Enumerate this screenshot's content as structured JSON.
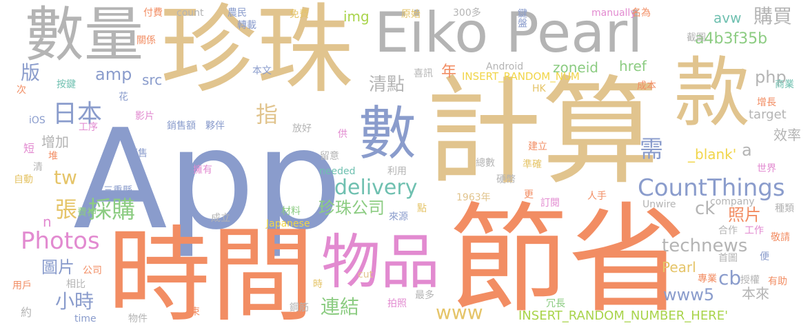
{
  "palette": {
    "peach": "#f4a88a",
    "orange": "#f28d63",
    "sand": "#e1c48e",
    "gold": "#e5c468",
    "lime": "#a9d44b",
    "green": "#8ccc82",
    "teal": "#6fc0b0",
    "blue": "#8a9ccc",
    "pink": "#e28ad0",
    "gray": "#b4b4b4",
    "yellow": "#f1d548"
  },
  "words": [
    {
      "text": "App",
      "color": "blue"
    },
    {
      "text": "珍珠",
      "color": "sand"
    },
    {
      "text": "計算",
      "color": "sand"
    },
    {
      "text": "節省",
      "color": "orange"
    },
    {
      "text": "時間",
      "color": "orange"
    },
    {
      "text": "Eiko Pearl",
      "color": "gray"
    },
    {
      "text": "數量",
      "color": "gray"
    },
    {
      "text": "款",
      "color": "sand"
    },
    {
      "text": "物品",
      "color": "pink"
    },
    {
      "text": "數",
      "color": "blue"
    },
    {
      "text": "CountThings",
      "color": "blue"
    },
    {
      "text": "Photos",
      "color": "pink"
    },
    {
      "text": "technews",
      "color": "gray"
    },
    {
      "text": "delivery",
      "color": "teal"
    },
    {
      "text": "www5",
      "color": "blue"
    },
    {
      "text": "購買",
      "color": "gray"
    },
    {
      "text": "日本",
      "color": "blue"
    },
    {
      "text": "amp",
      "color": "blue"
    },
    {
      "text": "版",
      "color": "blue"
    },
    {
      "text": "採購",
      "color": "green"
    },
    {
      "text": "清點",
      "color": "gray"
    },
    {
      "text": "連結",
      "color": "green"
    },
    {
      "text": "小時",
      "color": "blue"
    },
    {
      "text": "指",
      "color": "sand"
    },
    {
      "text": "需",
      "color": "blue"
    },
    {
      "text": "www",
      "color": "gold"
    },
    {
      "text": "珍珠公司",
      "color": "green"
    },
    {
      "text": "a4b3f35b",
      "color": "green"
    },
    {
      "text": "php",
      "color": "gray"
    },
    {
      "text": "張",
      "color": "gold"
    },
    {
      "text": "tw",
      "color": "gold"
    },
    {
      "text": "圖片",
      "color": "blue"
    },
    {
      "text": "cb",
      "color": "blue"
    },
    {
      "text": "zoneid",
      "color": "green"
    },
    {
      "text": "href",
      "color": "green"
    },
    {
      "text": "INSERT_RANDOM_NUMBER_HERE'",
      "color": "lime"
    },
    {
      "text": "INSERT_RANDOM_NUM",
      "color": "yellow"
    },
    {
      "text": "增加",
      "color": "gray"
    },
    {
      "text": "效率",
      "color": "gray"
    },
    {
      "text": "ck",
      "color": "gray"
    },
    {
      "text": "a",
      "color": "gray"
    },
    {
      "text": "照片",
      "color": "orange"
    },
    {
      "text": "_blank'",
      "color": "yellow"
    },
    {
      "text": "Pearl",
      "color": "gold"
    },
    {
      "text": "本來",
      "color": "gray"
    },
    {
      "text": "年",
      "color": "orange"
    },
    {
      "text": "avw",
      "color": "teal"
    },
    {
      "text": "src",
      "color": "blue"
    },
    {
      "text": "img",
      "color": "lime"
    },
    {
      "text": "n",
      "color": "pink"
    },
    {
      "text": "target",
      "color": "gray"
    },
    {
      "text": "Android",
      "color": "gray"
    },
    {
      "text": "300多",
      "color": "gray"
    },
    {
      "text": "needed",
      "color": "teal"
    },
    {
      "text": "1963年",
      "color": "sand"
    },
    {
      "text": "company",
      "color": "gray"
    },
    {
      "text": "manually",
      "color": "pink"
    },
    {
      "text": "Japanese",
      "color": "yellow"
    },
    {
      "text": "Unwire",
      "color": "gray"
    },
    {
      "text": "cut",
      "color": "sand"
    },
    {
      "text": "time",
      "color": "blue"
    },
    {
      "text": "count",
      "color": "gray"
    },
    {
      "text": "iOS",
      "color": "blue"
    },
    {
      "text": "HK",
      "color": "gold"
    },
    {
      "text": "名為",
      "color": "orange"
    },
    {
      "text": "截圖",
      "color": "gray"
    },
    {
      "text": "商業",
      "color": "teal"
    },
    {
      "text": "增長",
      "color": "orange"
    },
    {
      "text": "世界",
      "color": "pink"
    },
    {
      "text": "種類",
      "color": "gray"
    },
    {
      "text": "敬請",
      "color": "orange"
    },
    {
      "text": "工作",
      "color": "pink"
    },
    {
      "text": "合作",
      "color": "gray"
    },
    {
      "text": "首圖",
      "color": "gray"
    },
    {
      "text": "便",
      "color": "blue"
    },
    {
      "text": "專業",
      "color": "orange"
    },
    {
      "text": "授權",
      "color": "gray"
    },
    {
      "text": "有助",
      "color": "orange"
    },
    {
      "text": "冗長",
      "color": "green"
    },
    {
      "text": "拍照",
      "color": "pink"
    },
    {
      "text": "最多",
      "color": "gray"
    },
    {
      "text": "鋼筋",
      "color": "gray"
    },
    {
      "text": "物件",
      "color": "gray"
    },
    {
      "text": "束",
      "color": "orange"
    },
    {
      "text": "約",
      "color": "gray"
    },
    {
      "text": "用戶",
      "color": "orange"
    },
    {
      "text": "相比",
      "color": "gray"
    },
    {
      "text": "公司",
      "color": "orange"
    },
    {
      "text": "成立",
      "color": "gray"
    },
    {
      "text": "材料",
      "color": "green"
    },
    {
      "text": "來源",
      "color": "blue"
    },
    {
      "text": "點",
      "color": "gold"
    },
    {
      "text": "更",
      "color": "orange"
    },
    {
      "text": "訂閱",
      "color": "pink"
    },
    {
      "text": "人手",
      "color": "orange"
    },
    {
      "text": "硬幣",
      "color": "gray"
    },
    {
      "text": "準確",
      "color": "gold"
    },
    {
      "text": "總數",
      "color": "gray"
    },
    {
      "text": "建立",
      "color": "orange"
    },
    {
      "text": "成本",
      "color": "orange"
    },
    {
      "text": "利用",
      "color": "gray"
    },
    {
      "text": "留意",
      "color": "gray"
    },
    {
      "text": "供",
      "color": "pink"
    },
    {
      "text": "放好",
      "color": "gray"
    },
    {
      "text": "喜訊",
      "color": "gray"
    },
    {
      "text": "原始",
      "color": "gold"
    },
    {
      "text": "本文",
      "color": "blue"
    },
    {
      "text": "轉載",
      "color": "blue"
    },
    {
      "text": "農民",
      "color": "blue"
    },
    {
      "text": "免費",
      "color": "gold"
    },
    {
      "text": "鍵盤",
      "color": "blue"
    },
    {
      "text": "付費",
      "color": "orange"
    },
    {
      "text": "關係",
      "color": "orange"
    },
    {
      "text": "按鍵",
      "color": "teal"
    },
    {
      "text": "次",
      "color": "orange"
    },
    {
      "text": "花",
      "color": "blue"
    },
    {
      "text": "影片",
      "color": "pink"
    },
    {
      "text": "工序",
      "color": "pink"
    },
    {
      "text": "銷售額",
      "color": "blue"
    },
    {
      "text": "夥伴",
      "color": "blue"
    },
    {
      "text": "短",
      "color": "pink"
    },
    {
      "text": "堆",
      "color": "orange"
    },
    {
      "text": "清",
      "color": "gray"
    },
    {
      "text": "自動",
      "color": "gold"
    },
    {
      "text": "銷售",
      "color": "blue"
    },
    {
      "text": "擁有",
      "color": "pink"
    },
    {
      "text": "三重縣",
      "color": "blue"
    },
    {
      "text": "費神",
      "color": "green"
    },
    {
      "text": "時",
      "color": "gold"
    }
  ]
}
